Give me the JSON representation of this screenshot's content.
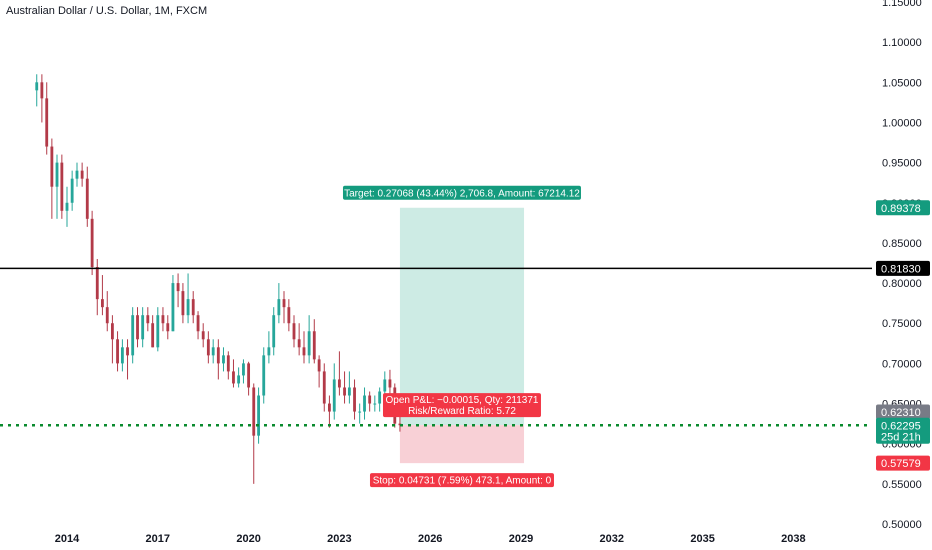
{
  "header": {
    "title": "Australian Dollar / U.S. Dollar, 1M, FXCM"
  },
  "colors": {
    "up": "#26a69a",
    "down": "#b23a48",
    "bg": "#ffffff",
    "axis_text": "#131722",
    "target_zone": "#cdebe4",
    "stop_zone": "#f8d0d6",
    "target_label": "#149b7e",
    "stop_label": "#f23645",
    "current_price": "#0a8a2e",
    "hline": "#000000"
  },
  "chart_data": {
    "type": "candlestick",
    "ylim": [
      0.5,
      1.15
    ],
    "y_ticks": [
      "1.15000",
      "1.10000",
      "1.05000",
      "1.00000",
      "0.95000",
      "0.90000",
      "0.85000",
      "0.80000",
      "0.75000",
      "0.70000",
      "0.65000",
      "0.60000",
      "0.55000",
      "0.50000"
    ],
    "x_ticks": [
      "2014",
      "2017",
      "2020",
      "2023",
      "2026",
      "2029",
      "2032",
      "2035",
      "2038"
    ],
    "x_range": [
      2013.0,
      2041.0
    ],
    "horizontal_line": {
      "value": 0.8183,
      "label": "0.81830"
    },
    "current_price": {
      "value": 0.62295,
      "label": "0.62295",
      "countdown": "25d 21h"
    },
    "last_close_label": "0.62310",
    "position": {
      "entry": 0.6231,
      "target": 0.89378,
      "stop": 0.57579,
      "start": 2025.0,
      "end": 2029.1,
      "target_text": "Target: 0.27068 (43.44%) 2,706.8, Amount: 67214.12",
      "target_price_label": "0.89378",
      "stop_text": "Stop: 0.04731 (7.59%) 473.1, Amount: 0",
      "stop_price_label": "0.57579",
      "open_pnl_text": "Open P&L: −0.00015, Qty: 211371",
      "rr_text": "Risk/Reward Ratio: 5.72"
    },
    "series": [
      {
        "t": 2013.0,
        "o": 1.04,
        "h": 1.06,
        "l": 1.02,
        "c": 1.05
      },
      {
        "t": 2013.17,
        "o": 1.05,
        "h": 1.06,
        "l": 1.0,
        "c": 1.03
      },
      {
        "t": 2013.33,
        "o": 1.03,
        "h": 1.05,
        "l": 0.96,
        "c": 0.97
      },
      {
        "t": 2013.5,
        "o": 0.97,
        "h": 0.98,
        "l": 0.88,
        "c": 0.92
      },
      {
        "t": 2013.67,
        "o": 0.92,
        "h": 0.96,
        "l": 0.88,
        "c": 0.95
      },
      {
        "t": 2013.83,
        "o": 0.95,
        "h": 0.96,
        "l": 0.88,
        "c": 0.89
      },
      {
        "t": 2014.0,
        "o": 0.89,
        "h": 0.92,
        "l": 0.87,
        "c": 0.9
      },
      {
        "t": 2014.17,
        "o": 0.9,
        "h": 0.94,
        "l": 0.89,
        "c": 0.93
      },
      {
        "t": 2014.33,
        "o": 0.93,
        "h": 0.95,
        "l": 0.92,
        "c": 0.94
      },
      {
        "t": 2014.5,
        "o": 0.94,
        "h": 0.95,
        "l": 0.92,
        "c": 0.93
      },
      {
        "t": 2014.67,
        "o": 0.93,
        "h": 0.945,
        "l": 0.87,
        "c": 0.88
      },
      {
        "t": 2014.83,
        "o": 0.88,
        "h": 0.89,
        "l": 0.81,
        "c": 0.82
      },
      {
        "t": 2015.0,
        "o": 0.82,
        "h": 0.83,
        "l": 0.76,
        "c": 0.78
      },
      {
        "t": 2015.17,
        "o": 0.78,
        "h": 0.81,
        "l": 0.76,
        "c": 0.77
      },
      {
        "t": 2015.33,
        "o": 0.77,
        "h": 0.79,
        "l": 0.74,
        "c": 0.75
      },
      {
        "t": 2015.5,
        "o": 0.75,
        "h": 0.76,
        "l": 0.7,
        "c": 0.73
      },
      {
        "t": 2015.67,
        "o": 0.73,
        "h": 0.74,
        "l": 0.69,
        "c": 0.7
      },
      {
        "t": 2015.83,
        "o": 0.7,
        "h": 0.73,
        "l": 0.69,
        "c": 0.72
      },
      {
        "t": 2016.0,
        "o": 0.72,
        "h": 0.73,
        "l": 0.68,
        "c": 0.71
      },
      {
        "t": 2016.17,
        "o": 0.71,
        "h": 0.77,
        "l": 0.7,
        "c": 0.76
      },
      {
        "t": 2016.33,
        "o": 0.76,
        "h": 0.77,
        "l": 0.72,
        "c": 0.73
      },
      {
        "t": 2016.5,
        "o": 0.73,
        "h": 0.77,
        "l": 0.72,
        "c": 0.76
      },
      {
        "t": 2016.67,
        "o": 0.76,
        "h": 0.77,
        "l": 0.74,
        "c": 0.75
      },
      {
        "t": 2016.83,
        "o": 0.75,
        "h": 0.76,
        "l": 0.72,
        "c": 0.72
      },
      {
        "t": 2017.0,
        "o": 0.72,
        "h": 0.77,
        "l": 0.715,
        "c": 0.76
      },
      {
        "t": 2017.17,
        "o": 0.76,
        "h": 0.77,
        "l": 0.74,
        "c": 0.75
      },
      {
        "t": 2017.33,
        "o": 0.75,
        "h": 0.76,
        "l": 0.73,
        "c": 0.74
      },
      {
        "t": 2017.5,
        "o": 0.74,
        "h": 0.81,
        "l": 0.74,
        "c": 0.8
      },
      {
        "t": 2017.67,
        "o": 0.8,
        "h": 0.812,
        "l": 0.77,
        "c": 0.79
      },
      {
        "t": 2017.83,
        "o": 0.79,
        "h": 0.8,
        "l": 0.75,
        "c": 0.76
      },
      {
        "t": 2018.0,
        "o": 0.76,
        "h": 0.812,
        "l": 0.75,
        "c": 0.78
      },
      {
        "t": 2018.17,
        "o": 0.78,
        "h": 0.79,
        "l": 0.75,
        "c": 0.76
      },
      {
        "t": 2018.33,
        "o": 0.76,
        "h": 0.765,
        "l": 0.73,
        "c": 0.74
      },
      {
        "t": 2018.5,
        "o": 0.74,
        "h": 0.75,
        "l": 0.72,
        "c": 0.73
      },
      {
        "t": 2018.67,
        "o": 0.73,
        "h": 0.74,
        "l": 0.7,
        "c": 0.71
      },
      {
        "t": 2018.83,
        "o": 0.71,
        "h": 0.73,
        "l": 0.7,
        "c": 0.72
      },
      {
        "t": 2019.0,
        "o": 0.72,
        "h": 0.73,
        "l": 0.68,
        "c": 0.7
      },
      {
        "t": 2019.17,
        "o": 0.7,
        "h": 0.72,
        "l": 0.69,
        "c": 0.71
      },
      {
        "t": 2019.33,
        "o": 0.71,
        "h": 0.715,
        "l": 0.68,
        "c": 0.69
      },
      {
        "t": 2019.5,
        "o": 0.69,
        "h": 0.705,
        "l": 0.67,
        "c": 0.675
      },
      {
        "t": 2019.67,
        "o": 0.675,
        "h": 0.695,
        "l": 0.67,
        "c": 0.685
      },
      {
        "t": 2019.83,
        "o": 0.685,
        "h": 0.705,
        "l": 0.675,
        "c": 0.7
      },
      {
        "t": 2020.0,
        "o": 0.7,
        "h": 0.702,
        "l": 0.66,
        "c": 0.67
      },
      {
        "t": 2020.17,
        "o": 0.67,
        "h": 0.675,
        "l": 0.55,
        "c": 0.61
      },
      {
        "t": 2020.33,
        "o": 0.61,
        "h": 0.67,
        "l": 0.6,
        "c": 0.66
      },
      {
        "t": 2020.5,
        "o": 0.66,
        "h": 0.72,
        "l": 0.65,
        "c": 0.71
      },
      {
        "t": 2020.67,
        "o": 0.71,
        "h": 0.74,
        "l": 0.7,
        "c": 0.72
      },
      {
        "t": 2020.83,
        "o": 0.72,
        "h": 0.77,
        "l": 0.71,
        "c": 0.76
      },
      {
        "t": 2021.0,
        "o": 0.76,
        "h": 0.8,
        "l": 0.75,
        "c": 0.78
      },
      {
        "t": 2021.17,
        "o": 0.78,
        "h": 0.79,
        "l": 0.75,
        "c": 0.77
      },
      {
        "t": 2021.33,
        "o": 0.77,
        "h": 0.78,
        "l": 0.74,
        "c": 0.75
      },
      {
        "t": 2021.5,
        "o": 0.75,
        "h": 0.76,
        "l": 0.72,
        "c": 0.73
      },
      {
        "t": 2021.67,
        "o": 0.73,
        "h": 0.75,
        "l": 0.71,
        "c": 0.72
      },
      {
        "t": 2021.83,
        "o": 0.72,
        "h": 0.74,
        "l": 0.7,
        "c": 0.71
      },
      {
        "t": 2022.0,
        "o": 0.71,
        "h": 0.76,
        "l": 0.7,
        "c": 0.74
      },
      {
        "t": 2022.17,
        "o": 0.74,
        "h": 0.755,
        "l": 0.7,
        "c": 0.705
      },
      {
        "t": 2022.33,
        "o": 0.705,
        "h": 0.71,
        "l": 0.67,
        "c": 0.69
      },
      {
        "t": 2022.5,
        "o": 0.69,
        "h": 0.7,
        "l": 0.64,
        "c": 0.65
      },
      {
        "t": 2022.67,
        "o": 0.65,
        "h": 0.66,
        "l": 0.62,
        "c": 0.64
      },
      {
        "t": 2022.83,
        "o": 0.64,
        "h": 0.7,
        "l": 0.63,
        "c": 0.68
      },
      {
        "t": 2023.0,
        "o": 0.68,
        "h": 0.715,
        "l": 0.66,
        "c": 0.67
      },
      {
        "t": 2023.17,
        "o": 0.67,
        "h": 0.69,
        "l": 0.65,
        "c": 0.66
      },
      {
        "t": 2023.33,
        "o": 0.66,
        "h": 0.69,
        "l": 0.65,
        "c": 0.67
      },
      {
        "t": 2023.5,
        "o": 0.67,
        "h": 0.68,
        "l": 0.63,
        "c": 0.64
      },
      {
        "t": 2023.67,
        "o": 0.64,
        "h": 0.65,
        "l": 0.625,
        "c": 0.64
      },
      {
        "t": 2023.83,
        "o": 0.64,
        "h": 0.67,
        "l": 0.63,
        "c": 0.66
      },
      {
        "t": 2024.0,
        "o": 0.66,
        "h": 0.665,
        "l": 0.64,
        "c": 0.65
      },
      {
        "t": 2024.17,
        "o": 0.65,
        "h": 0.66,
        "l": 0.64,
        "c": 0.65
      },
      {
        "t": 2024.33,
        "o": 0.65,
        "h": 0.67,
        "l": 0.64,
        "c": 0.665
      },
      {
        "t": 2024.5,
        "o": 0.665,
        "h": 0.69,
        "l": 0.65,
        "c": 0.68
      },
      {
        "t": 2024.67,
        "o": 0.68,
        "h": 0.692,
        "l": 0.66,
        "c": 0.67
      },
      {
        "t": 2024.83,
        "o": 0.67,
        "h": 0.675,
        "l": 0.62,
        "c": 0.625
      },
      {
        "t": 2025.0,
        "o": 0.625,
        "h": 0.64,
        "l": 0.615,
        "c": 0.623
      }
    ]
  }
}
